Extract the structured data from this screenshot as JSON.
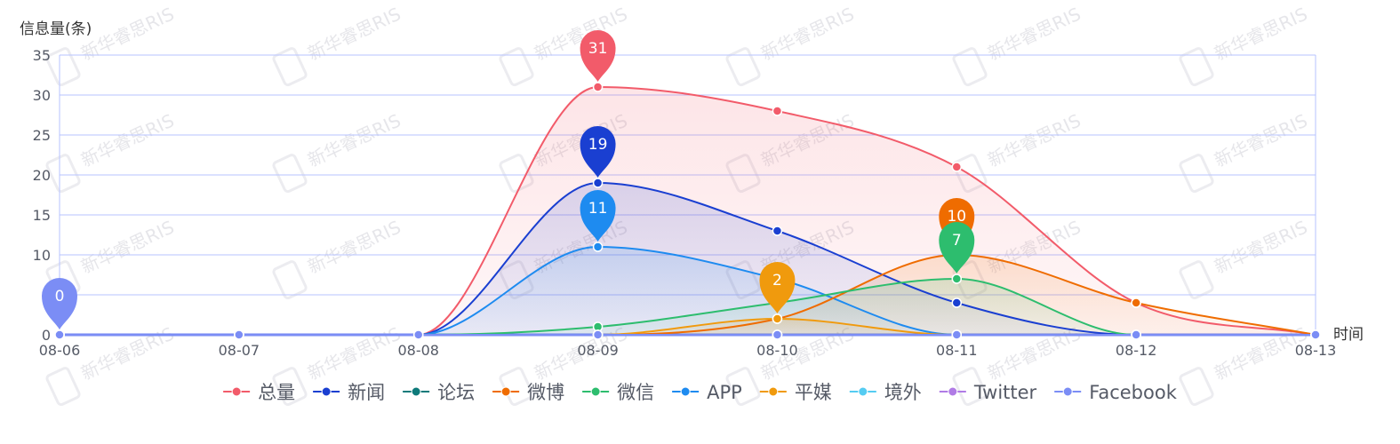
{
  "chart_data": {
    "type": "area",
    "ylabel": "信息量(条)",
    "xlabel": "时间",
    "watermark": "新华睿思RIS",
    "categories": [
      "08-06",
      "08-07",
      "08-08",
      "08-09",
      "08-10",
      "08-11",
      "08-12",
      "08-13"
    ],
    "ylim": [
      0,
      35
    ],
    "yticks": [
      0,
      5,
      10,
      15,
      20,
      25,
      30,
      35
    ],
    "grid": true,
    "legend_position": "bottom",
    "series": [
      {
        "name": "总量",
        "color": "#f25b6a",
        "values": [
          0,
          0,
          0,
          31,
          28,
          21,
          4,
          0
        ],
        "area": true,
        "markMax": true
      },
      {
        "name": "新闻",
        "color": "#1a3fd1",
        "values": [
          0,
          0,
          0,
          19,
          13,
          4,
          0,
          0
        ],
        "area": true,
        "markMax": true
      },
      {
        "name": "论坛",
        "color": "#0e7a7a",
        "values": [
          0,
          0,
          0,
          0,
          0,
          0,
          0,
          0
        ],
        "area": false,
        "markMax": false
      },
      {
        "name": "微博",
        "color": "#ef6c00",
        "values": [
          0,
          0,
          0,
          0,
          2,
          10,
          4,
          0
        ],
        "area": true,
        "markMax": true
      },
      {
        "name": "微信",
        "color": "#2dbd6e",
        "values": [
          0,
          0,
          0,
          1,
          4,
          7,
          0,
          0
        ],
        "area": true,
        "markMax": true
      },
      {
        "name": "APP",
        "color": "#1e8bf0",
        "values": [
          0,
          0,
          0,
          11,
          7,
          0,
          0,
          0
        ],
        "area": true,
        "markMax": true
      },
      {
        "name": "平媒",
        "color": "#f09a0d",
        "values": [
          0,
          0,
          0,
          0,
          2,
          0,
          0,
          0
        ],
        "area": true,
        "markMax": true
      },
      {
        "name": "境外",
        "color": "#55ccf2",
        "values": [
          0,
          0,
          0,
          0,
          0,
          0,
          0,
          0
        ],
        "area": false,
        "markMax": false
      },
      {
        "name": "Twitter",
        "color": "#b07be5",
        "values": [
          0,
          0,
          0,
          0,
          0,
          0,
          0,
          0
        ],
        "area": false,
        "markMax": false
      },
      {
        "name": "Facebook",
        "color": "#7b8df5",
        "values": [
          0,
          0,
          0,
          0,
          0,
          0,
          0,
          0
        ],
        "area": false,
        "markMax": true
      }
    ]
  }
}
